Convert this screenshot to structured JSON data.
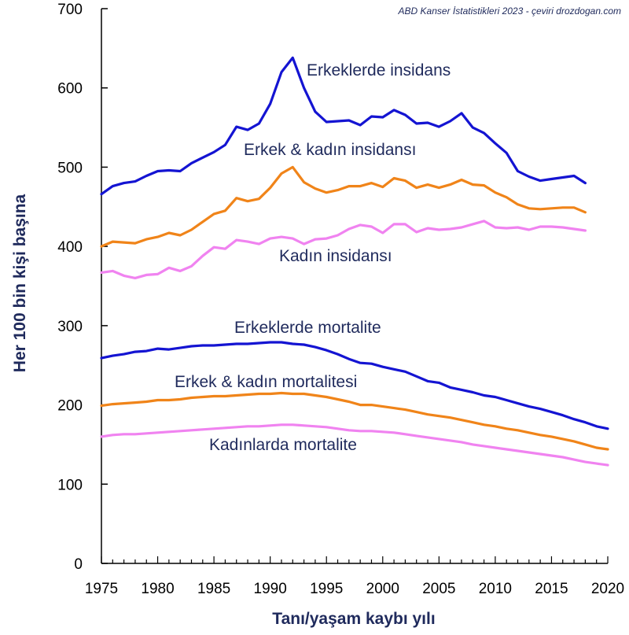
{
  "chart_data": {
    "type": "line",
    "source_note": "ABD Kanser İstatistikleri 2023 - çeviri drozdogan.com",
    "xlabel": "Tanı/yaşam kaybı yılı",
    "ylabel": "Her 100 bin kişi başına",
    "xlim": [
      1975,
      2020
    ],
    "ylim": [
      0,
      700
    ],
    "x_ticks": [
      1975,
      1980,
      1985,
      1990,
      1995,
      2000,
      2005,
      2010,
      2015,
      2020
    ],
    "y_ticks": [
      0,
      100,
      200,
      300,
      400,
      500,
      600,
      700
    ],
    "series": [
      {
        "name": "Erkeklerde insidans",
        "color": "#1414d2",
        "x": [
          1975,
          1976,
          1977,
          1978,
          1979,
          1980,
          1981,
          1982,
          1983,
          1984,
          1985,
          1986,
          1987,
          1988,
          1989,
          1990,
          1991,
          1992,
          1993,
          1994,
          1995,
          1996,
          1997,
          1998,
          1999,
          2000,
          2001,
          2002,
          2003,
          2004,
          2005,
          2006,
          2007,
          2008,
          2009,
          2010,
          2011,
          2012,
          2013,
          2014,
          2015,
          2016,
          2017,
          2018
        ],
        "values": [
          466,
          476,
          480,
          482,
          489,
          495,
          496,
          495,
          505,
          512,
          519,
          528,
          551,
          547,
          555,
          580,
          620,
          638,
          600,
          570,
          557,
          558,
          559,
          553,
          564,
          563,
          572,
          566,
          555,
          556,
          551,
          558,
          568,
          550,
          543,
          530,
          518,
          495,
          488,
          483,
          485,
          487,
          489,
          480
        ]
      },
      {
        "name": "Erkek & kadın insidansı",
        "color": "#f08419",
        "x": [
          1975,
          1976,
          1977,
          1978,
          1979,
          1980,
          1981,
          1982,
          1983,
          1984,
          1985,
          1986,
          1987,
          1988,
          1989,
          1990,
          1991,
          1992,
          1993,
          1994,
          1995,
          1996,
          1997,
          1998,
          1999,
          2000,
          2001,
          2002,
          2003,
          2004,
          2005,
          2006,
          2007,
          2008,
          2009,
          2010,
          2011,
          2012,
          2013,
          2014,
          2015,
          2016,
          2017,
          2018
        ],
        "values": [
          400,
          406,
          405,
          404,
          409,
          412,
          417,
          414,
          421,
          431,
          441,
          445,
          461,
          457,
          460,
          474,
          492,
          500,
          481,
          473,
          468,
          471,
          476,
          476,
          480,
          475,
          486,
          483,
          474,
          478,
          474,
          478,
          484,
          478,
          477,
          468,
          462,
          453,
          448,
          447,
          448,
          449,
          449,
          443
        ]
      },
      {
        "name": "Kadın insidansı",
        "color": "#f083f0",
        "x": [
          1975,
          1976,
          1977,
          1978,
          1979,
          1980,
          1981,
          1982,
          1983,
          1984,
          1985,
          1986,
          1987,
          1988,
          1989,
          1990,
          1991,
          1992,
          1993,
          1994,
          1995,
          1996,
          1997,
          1998,
          1999,
          2000,
          2001,
          2002,
          2003,
          2004,
          2005,
          2006,
          2007,
          2008,
          2009,
          2010,
          2011,
          2012,
          2013,
          2014,
          2015,
          2016,
          2017,
          2018
        ],
        "values": [
          367,
          369,
          363,
          360,
          364,
          365,
          373,
          369,
          375,
          388,
          399,
          397,
          408,
          406,
          403,
          410,
          412,
          410,
          403,
          409,
          410,
          414,
          422,
          427,
          425,
          417,
          428,
          428,
          418,
          423,
          421,
          422,
          424,
          428,
          432,
          424,
          423,
          424,
          421,
          425,
          425,
          424,
          422,
          420
        ]
      },
      {
        "name": "Erkeklerde mortalite",
        "color": "#1414d2",
        "x": [
          1975,
          1976,
          1977,
          1978,
          1979,
          1980,
          1981,
          1982,
          1983,
          1984,
          1985,
          1986,
          1987,
          1988,
          1989,
          1990,
          1991,
          1992,
          1993,
          1994,
          1995,
          1996,
          1997,
          1998,
          1999,
          2000,
          2001,
          2002,
          2003,
          2004,
          2005,
          2006,
          2007,
          2008,
          2009,
          2010,
          2011,
          2012,
          2013,
          2014,
          2015,
          2016,
          2017,
          2018,
          2019,
          2020
        ],
        "values": [
          259,
          262,
          264,
          267,
          268,
          271,
          270,
          272,
          274,
          275,
          275,
          276,
          277,
          277,
          278,
          279,
          279,
          277,
          276,
          273,
          269,
          264,
          258,
          253,
          252,
          248,
          245,
          242,
          236,
          230,
          228,
          222,
          219,
          216,
          212,
          210,
          206,
          202,
          198,
          195,
          191,
          187,
          182,
          178,
          173,
          170
        ]
      },
      {
        "name": "Erkek & kadın mortalitesi",
        "color": "#f08419",
        "x": [
          1975,
          1976,
          1977,
          1978,
          1979,
          1980,
          1981,
          1982,
          1983,
          1984,
          1985,
          1986,
          1987,
          1988,
          1989,
          1990,
          1991,
          1992,
          1993,
          1994,
          1995,
          1996,
          1997,
          1998,
          1999,
          2000,
          2001,
          2002,
          2003,
          2004,
          2005,
          2006,
          2007,
          2008,
          2009,
          2010,
          2011,
          2012,
          2013,
          2014,
          2015,
          2016,
          2017,
          2018,
          2019,
          2020
        ],
        "values": [
          199,
          201,
          202,
          203,
          204,
          206,
          206,
          207,
          209,
          210,
          211,
          211,
          212,
          213,
          214,
          214,
          215,
          214,
          214,
          212,
          210,
          207,
          204,
          200,
          200,
          198,
          196,
          194,
          191,
          188,
          186,
          184,
          181,
          178,
          175,
          173,
          170,
          168,
          165,
          162,
          160,
          157,
          154,
          150,
          146,
          144
        ]
      },
      {
        "name": "Kadınlarda mortalite",
        "color": "#f083f0",
        "x": [
          1975,
          1976,
          1977,
          1978,
          1979,
          1980,
          1981,
          1982,
          1983,
          1984,
          1985,
          1986,
          1987,
          1988,
          1989,
          1990,
          1991,
          1992,
          1993,
          1994,
          1995,
          1996,
          1997,
          1998,
          1999,
          2000,
          2001,
          2002,
          2003,
          2004,
          2005,
          2006,
          2007,
          2008,
          2009,
          2010,
          2011,
          2012,
          2013,
          2014,
          2015,
          2016,
          2017,
          2018,
          2019,
          2020
        ],
        "values": [
          160,
          162,
          163,
          163,
          164,
          165,
          166,
          167,
          168,
          169,
          170,
          171,
          172,
          173,
          173,
          174,
          175,
          175,
          174,
          173,
          172,
          170,
          168,
          167,
          167,
          166,
          165,
          163,
          161,
          159,
          157,
          155,
          153,
          150,
          148,
          146,
          144,
          142,
          140,
          138,
          136,
          134,
          131,
          128,
          126,
          124
        ]
      }
    ],
    "annotations": [
      {
        "text": "Erkeklerde insidans",
        "series": 0
      },
      {
        "text": "Erkek & kadın insidansı",
        "series": 1
      },
      {
        "text": "Kadın insidansı",
        "series": 2
      },
      {
        "text": "Erkeklerde mortalite",
        "series": 3
      },
      {
        "text": "Erkek & kadın mortalitesi",
        "series": 4
      },
      {
        "text": "Kadınlarda mortalite",
        "series": 5
      }
    ]
  }
}
